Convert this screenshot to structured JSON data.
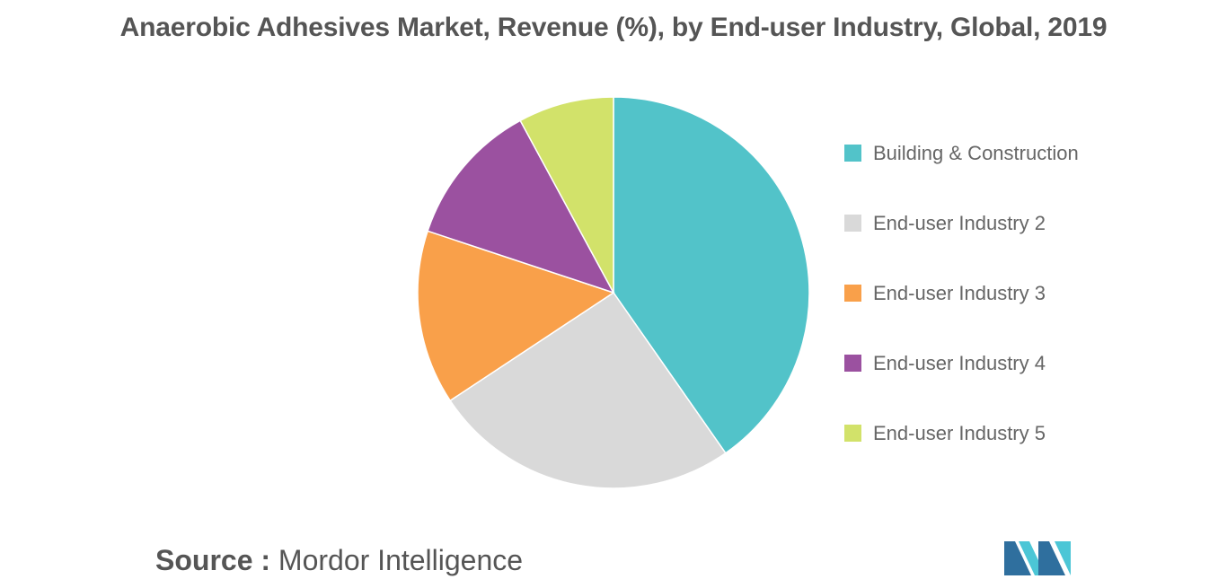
{
  "chart_data": {
    "type": "pie",
    "title": "Anaerobic Adhesives Market, Revenue (%), by End-user Industry, Global, 2019",
    "categories": [
      "Building & Construction",
      "End-user Industry 2",
      "End-user Industry 3",
      "End-user Industry 4",
      "End-user Industry 5"
    ],
    "values": [
      40.3,
      25.4,
      14.4,
      12.0,
      7.9
    ],
    "colors": [
      "#52c3c9",
      "#d9d9d9",
      "#f9a04a",
      "#9b51a0",
      "#d2e26a"
    ],
    "legend_position": "right",
    "start_angle": "top, clockwise"
  },
  "source": {
    "prefix": "Source :",
    "name": "Mordor Intelligence"
  },
  "logo": {
    "icon": "mordor-intelligence-logo",
    "colors": [
      "#2f6f9e",
      "#4cc6d6"
    ]
  }
}
